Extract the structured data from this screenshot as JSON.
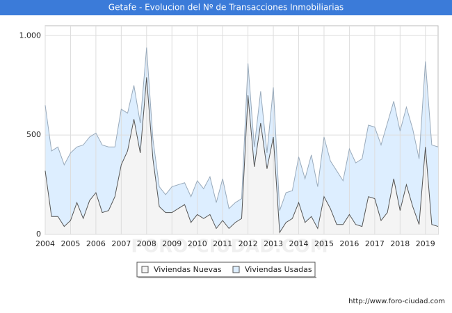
{
  "chart_data": {
    "type": "stacked_area",
    "title": "Getafe - Evolucion del Nº de Transacciones Inmobiliarias",
    "categories": [
      "2004",
      null,
      null,
      null,
      "2005",
      null,
      null,
      null,
      "2006",
      null,
      null,
      null,
      "2007",
      null,
      null,
      null,
      "2008",
      null,
      null,
      null,
      "2009",
      null,
      null,
      null,
      "2010",
      null,
      null,
      null,
      "2011",
      null,
      null,
      null,
      "2012",
      null,
      null,
      null,
      "2013",
      null,
      null,
      null,
      "2014",
      null,
      null,
      null,
      "2015",
      null,
      null,
      null,
      "2016",
      null,
      null,
      null,
      "2017",
      null,
      null,
      null,
      "2018",
      null,
      null,
      null,
      "2019",
      null,
      null
    ],
    "series": [
      {
        "name": "Viviendas Nuevas",
        "color": "#f4f4f4",
        "line_color": "#555555",
        "values": [
          320,
          90,
          90,
          40,
          70,
          160,
          80,
          170,
          210,
          110,
          120,
          190,
          350,
          420,
          580,
          410,
          790,
          380,
          140,
          110,
          110,
          130,
          150,
          60,
          100,
          80,
          100,
          30,
          70,
          30,
          60,
          80,
          700,
          340,
          560,
          330,
          490,
          10,
          60,
          80,
          160,
          60,
          90,
          30,
          190,
          130,
          50,
          50,
          100,
          50,
          40,
          190,
          180,
          70,
          110,
          280,
          120,
          250,
          140,
          50,
          440,
          50,
          40
        ]
      },
      {
        "name": "Viviendas Usadas",
        "color": "#ddeeff",
        "line_color": "#99aabb",
        "values": [
          330,
          330,
          350,
          310,
          340,
          280,
          370,
          320,
          300,
          340,
          320,
          250,
          280,
          190,
          170,
          150,
          150,
          100,
          100,
          90,
          130,
          120,
          110,
          130,
          170,
          150,
          190,
          130,
          210,
          100,
          100,
          100,
          160,
          100,
          160,
          80,
          250,
          110,
          150,
          140,
          230,
          220,
          310,
          210,
          300,
          240,
          270,
          220,
          330,
          310,
          340,
          360,
          360,
          380,
          450,
          390,
          400,
          390,
          390,
          330,
          430,
          400,
          400
        ]
      }
    ],
    "ylim": [
      0,
      1050
    ],
    "yticks": [
      0,
      500,
      {
        "value": 1000,
        "label": "1.000"
      }
    ],
    "grid": true,
    "watermark": "FORO-CIUDAD.COM",
    "source": "http://www.foro-ciudad.com"
  }
}
